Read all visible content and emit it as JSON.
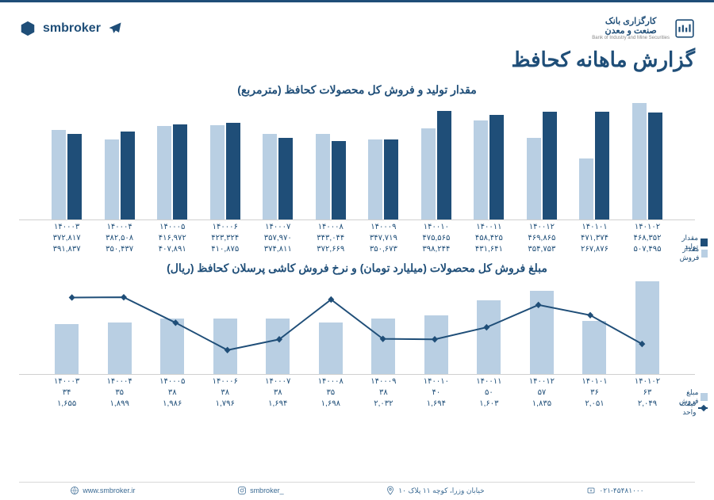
{
  "brand": {
    "right": "smbroker",
    "left_line1": "کارگزاری بانک",
    "left_line2": "صنعت و معدن",
    "left_sub": "Bank of Industry and Mine Securities"
  },
  "title": "گزارش ماهانه کحافظ",
  "chart1": {
    "title": "مقدار تولید و فروش کل محصولات کحافظ (مترمربع)",
    "categories": [
      "۱۴۰۰۰۳",
      "۱۴۰۰۰۴",
      "۱۴۰۰۰۵",
      "۱۴۰۰۰۶",
      "۱۴۰۰۰۷",
      "۱۴۰۰۰۸",
      "۱۴۰۰۰۹",
      "۱۴۰۰۱۰",
      "۱۴۰۰۱۱",
      "۱۴۰۰۱۲",
      "۱۴۰۱۰۱",
      "۱۴۰۱۰۲"
    ],
    "series1_label": "مقدار تولید",
    "series2_label": "مقدار فروش",
    "series1_values": [
      372817,
      382508,
      416972,
      423324,
      357970,
      343044,
      347719,
      475565,
      458425,
      469865,
      471374,
      468352
    ],
    "series2_values": [
      391837,
      350437,
      407891,
      410875,
      374811,
      372669,
      350673,
      398244,
      431641,
      354753,
      267876,
      507495
    ],
    "series1_display": [
      "۳۷۲,۸۱۷",
      "۳۸۲,۵۰۸",
      "۴۱۶,۹۷۲",
      "۴۲۳,۳۲۴",
      "۳۵۷,۹۷۰",
      "۳۴۳,۰۴۴",
      "۳۴۷,۷۱۹",
      "۴۷۵,۵۶۵",
      "۴۵۸,۴۲۵",
      "۴۶۹,۸۶۵",
      "۴۷۱,۳۷۴",
      "۴۶۸,۳۵۲"
    ],
    "series2_display": [
      "۳۹۱,۸۳۷",
      "۳۵۰,۴۳۷",
      "۴۰۷,۸۹۱",
      "۴۱۰,۸۷۵",
      "۳۷۴,۸۱۱",
      "۳۷۲,۶۶۹",
      "۳۵۰,۶۷۳",
      "۳۹۸,۲۴۴",
      "۴۳۱,۶۴۱",
      "۳۵۴,۷۵۳",
      "۲۶۷,۸۷۶",
      "۵۰۷,۴۹۵"
    ],
    "ymax": 520000,
    "color_dark": "#1f4e78",
    "color_light": "#b9cfe3"
  },
  "chart2": {
    "title": "مبلغ فروش کل محصولات (میلیارد تومان) و نرخ فروش کاشی پرسلان کحافظ (ریال)",
    "categories": [
      "۱۴۰۰۰۳",
      "۱۴۰۰۰۴",
      "۱۴۰۰۰۵",
      "۱۴۰۰۰۶",
      "۱۴۰۰۰۷",
      "۱۴۰۰۰۸",
      "۱۴۰۰۰۹",
      "۱۴۰۰۱۰",
      "۱۴۰۰۱۱",
      "۱۴۰۰۱۲",
      "۱۴۰۱۰۱",
      "۱۴۰۱۰۲"
    ],
    "bars_label": "مبلغ فروش",
    "line_label": "قیمت واحد",
    "bars_values": [
      34,
      35,
      38,
      38,
      38,
      35,
      38,
      40,
      50,
      57,
      36,
      63
    ],
    "bars_display": [
      "۳۴",
      "۳۵",
      "۳۸",
      "۳۸",
      "۳۸",
      "۳۵",
      "۳۸",
      "۴۰",
      "۵۰",
      "۵۷",
      "۳۶",
      "۶۳"
    ],
    "line_values": [
      1655,
      1899,
      1986,
      1796,
      1694,
      1698,
      2032,
      1694,
      1603,
      1835,
      2051,
      2049
    ],
    "line_display": [
      "۱,۶۵۵",
      "۱,۸۹۹",
      "۱,۹۸۶",
      "۱,۷۹۶",
      "۱,۶۹۴",
      "۱,۶۹۸",
      "۲,۰۳۲",
      "۱,۶۹۴",
      "۱,۶۰۳",
      "۱,۸۳۵",
      "۲,۰۵۱",
      "۲,۰۴۹"
    ],
    "bar_ymax": 65,
    "line_ymin": 1400,
    "line_ymax": 2200,
    "bar_color": "#b9cfe3",
    "line_color": "#1f4e78"
  },
  "footer": {
    "phone": "۰۲۱-۴۵۴۸۱۰۰۰",
    "address": "خیابان وزرا، کوچه ۱۱ پلاک ۱۰",
    "instagram": "smbroker_",
    "website": "www.smbroker.ir"
  }
}
